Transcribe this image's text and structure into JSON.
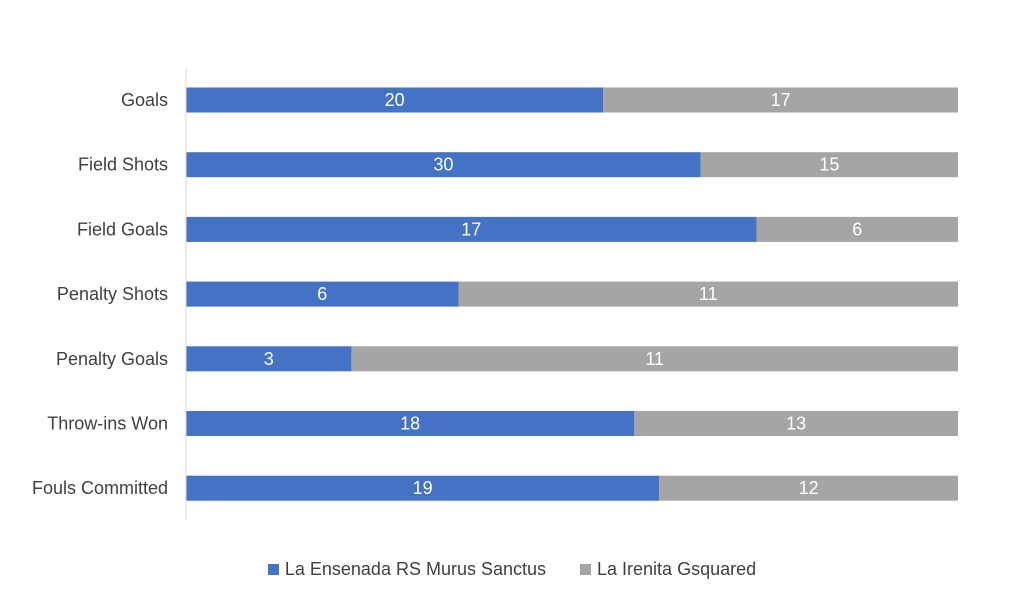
{
  "colors": {
    "series_1": "#4472C4",
    "series_2": "#A5A5A5",
    "axis": "#D9D9D9",
    "label_text": "#404040",
    "value_text": "#FFFFFF"
  },
  "chart_data": {
    "type": "bar",
    "orientation": "horizontal",
    "stacking": "percent",
    "title": "",
    "xlabel": "",
    "ylabel": "",
    "grid": false,
    "legend_position": "bottom",
    "categories": [
      "Goals",
      "Field Shots",
      "Field Goals",
      "Penalty Shots",
      "Penalty Goals",
      "Throw-ins Won",
      "Fouls Committed"
    ],
    "series": [
      {
        "name": "La Ensenada RS Murus Sanctus",
        "color": "#4472C4",
        "values": [
          20,
          30,
          17,
          6,
          3,
          18,
          19
        ]
      },
      {
        "name": "La Irenita Gsquared",
        "color": "#A5A5A5",
        "values": [
          17,
          15,
          6,
          11,
          11,
          13,
          12
        ]
      }
    ]
  }
}
